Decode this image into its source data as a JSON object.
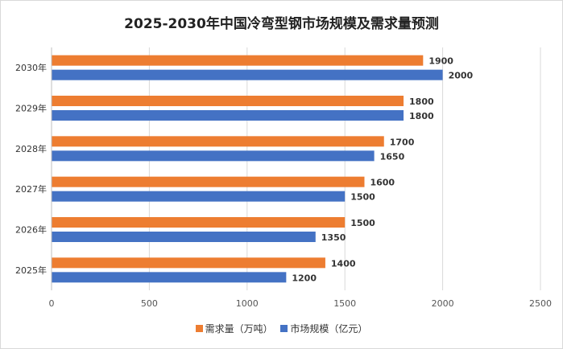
{
  "chart_data": {
    "type": "bar",
    "orientation": "horizontal",
    "title": "2025-2030年中国冷弯型钢市场规模及需求量预测",
    "categories": [
      "2025年",
      "2026年",
      "2027年",
      "2028年",
      "2029年",
      "2030年"
    ],
    "series": [
      {
        "name": "需求量（万吨）",
        "color": "#ED7D31",
        "values": [
          1400,
          1500,
          1600,
          1700,
          1800,
          1900
        ]
      },
      {
        "name": "市场规模（亿元）",
        "color": "#4472C4",
        "values": [
          1200,
          1350,
          1500,
          1650,
          1800,
          2000
        ]
      }
    ],
    "xlim": [
      0,
      2500
    ],
    "xticks": [
      0,
      500,
      1000,
      1500,
      2000,
      2500
    ],
    "grid": true,
    "legend_position": "bottom",
    "data_labels": true
  }
}
